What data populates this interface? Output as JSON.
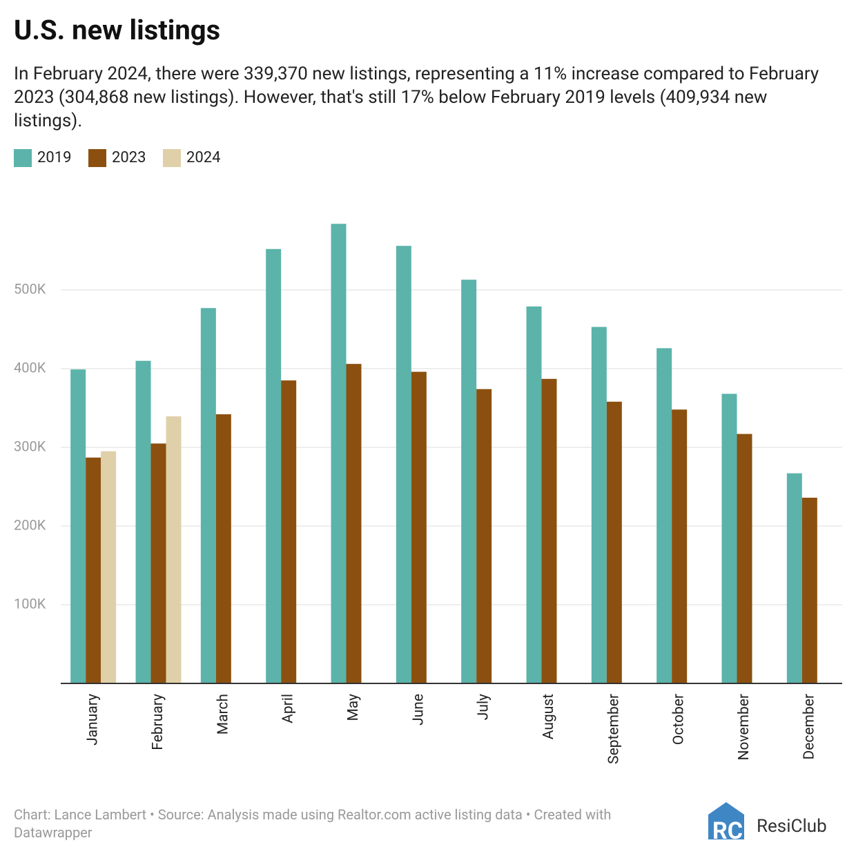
{
  "chart_data": {
    "type": "bar",
    "title": "U.S. new listings",
    "subtitle": "In February 2024, there were 339,370 new listings, representing a 11% increase compared to February 2023 (304,868 new listings). However, that's still 17% below February 2019 levels (409,934 new listings).",
    "categories": [
      "January",
      "February",
      "March",
      "April",
      "May",
      "June",
      "July",
      "August",
      "September",
      "October",
      "November",
      "December"
    ],
    "series": [
      {
        "name": "2019",
        "color": "#5bb3aa",
        "values": [
          399000,
          409934,
          477000,
          552000,
          584000,
          556000,
          513000,
          479000,
          453000,
          426000,
          368000,
          267000
        ]
      },
      {
        "name": "2023",
        "color": "#8b500f",
        "values": [
          287000,
          304868,
          342000,
          385000,
          406000,
          396000,
          374000,
          387000,
          358000,
          348000,
          317000,
          236000
        ]
      },
      {
        "name": "2024",
        "color": "#dfd0aa",
        "values": [
          295000,
          339370,
          null,
          null,
          null,
          null,
          null,
          null,
          null,
          null,
          null,
          null
        ]
      }
    ],
    "ylim": [
      0,
      600000
    ],
    "yticks": [
      {
        "value": 100000,
        "label": "100K"
      },
      {
        "value": 200000,
        "label": "200K"
      },
      {
        "value": 300000,
        "label": "300K"
      },
      {
        "value": 400000,
        "label": "400K"
      },
      {
        "value": 500000,
        "label": "500K"
      }
    ],
    "grid": true,
    "legend": "top-left",
    "footer": "Chart: Lance Lambert • Source: Analysis made using Realtor.com active listing data • Created with Datawrapper",
    "logo": "ResiClub"
  }
}
